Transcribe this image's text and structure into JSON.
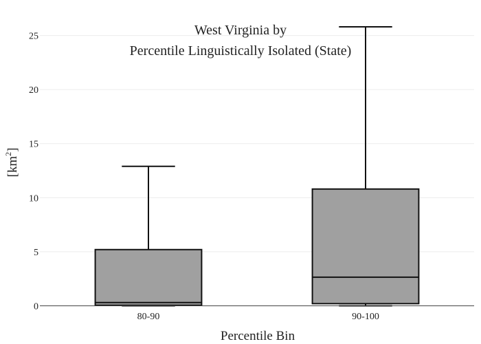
{
  "chart_data": {
    "type": "box",
    "title_line1": "West Virginia  by",
    "title_line2": "Percentile Linguistically Isolated (State)",
    "xlabel": "Percentile Bin",
    "ylabel": "[km",
    "ylabel_sup": "2",
    "ylabel_close": "]",
    "ylim": [
      0,
      26.5
    ],
    "yticks": [
      0,
      5,
      10,
      15,
      20,
      25
    ],
    "ytick_labels": [
      "0",
      "5",
      "10",
      "15",
      "20",
      "25"
    ],
    "grid": true,
    "box_color": "#a0a0a0",
    "categories": [
      "80-90",
      "90-100"
    ],
    "boxes": [
      {
        "category": "80-90",
        "min": 0.0,
        "q1": 0.05,
        "median": 0.3,
        "q3": 5.2,
        "max": 12.9
      },
      {
        "category": "90-100",
        "min": 0.0,
        "q1": 0.2,
        "median": 2.65,
        "q3": 10.8,
        "max": 25.8
      }
    ]
  }
}
